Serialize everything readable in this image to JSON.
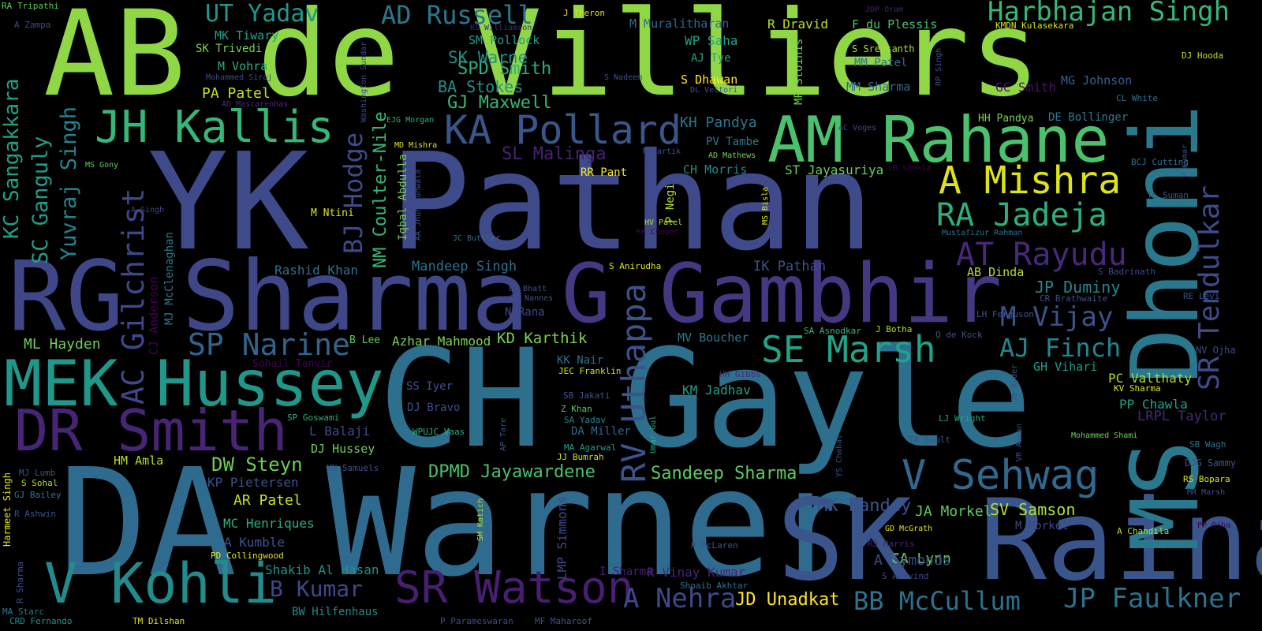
{
  "words": [
    {
      "text": "AB de Villiers",
      "color": "#8fd744"
    },
    {
      "text": "YK Pathan",
      "color": "#3e4a89"
    },
    {
      "text": "CH Gayle",
      "color": "#2d708e"
    },
    {
      "text": "DA Warner",
      "color": "#2f6b8e"
    },
    {
      "text": "RG Sharma",
      "color": "#3f4788"
    },
    {
      "text": "SK Raina",
      "color": "#39558c"
    },
    {
      "text": "MS Dhoni",
      "color": "#2a788e"
    },
    {
      "text": "G Gambhir",
      "color": "#453781"
    },
    {
      "text": "AM Rahane",
      "color": "#4ac16d"
    },
    {
      "text": "MEK Hussey",
      "color": "#1f988b"
    },
    {
      "text": "V Kohli",
      "color": "#238a8d"
    },
    {
      "text": "DR Smith",
      "color": "#482475"
    },
    {
      "text": "JH Kallis",
      "color": "#35b779"
    },
    {
      "text": "KA Pollard",
      "color": "#39568c"
    },
    {
      "text": "SR Watson",
      "color": "#481f70"
    },
    {
      "text": "Harbhajan Singh",
      "color": "#35b779"
    },
    {
      "text": "V Sehwag",
      "color": "#31688e"
    },
    {
      "text": "A Mishra",
      "color": "#dde318"
    },
    {
      "text": "RA Jadeja",
      "color": "#2ab07f"
    },
    {
      "text": "SE Marsh",
      "color": "#20a386"
    },
    {
      "text": "AT Rayudu",
      "color": "#482878"
    },
    {
      "text": "SP Narine",
      "color": "#33638d"
    },
    {
      "text": "RV Uthappa",
      "color": "#3b528b"
    },
    {
      "text": "SR Tendulkar",
      "color": "#3e4a89"
    },
    {
      "text": "AC Gilchrist",
      "color": "#3f4788"
    },
    {
      "text": "JP Faulkner",
      "color": "#2c728e"
    },
    {
      "text": "AJ Finch",
      "color": "#25858e"
    },
    {
      "text": "BB McCullum",
      "color": "#2c728e"
    },
    {
      "text": "M Vijay",
      "color": "#3b528b"
    },
    {
      "text": "A Nehra",
      "color": "#3e4989"
    },
    {
      "text": "KC Sangakkara",
      "color": "#1fa187"
    },
    {
      "text": "SC Ganguly",
      "color": "#1f9e89"
    },
    {
      "text": "Yuvraj Singh",
      "color": "#25838e"
    },
    {
      "text": "UT Yadav",
      "color": "#1f988b"
    },
    {
      "text": "AD Russell",
      "color": "#2a788e"
    },
    {
      "text": "BJ Hodge",
      "color": "#3e4a89"
    },
    {
      "text": "NM Coulter-Nile",
      "color": "#35b779"
    },
    {
      "text": "B Kumar",
      "color": "#3f4788"
    },
    {
      "text": "DW Steyn",
      "color": "#6ece58"
    },
    {
      "text": "DPMD Jayawardene",
      "color": "#4ac16d"
    },
    {
      "text": "Sandeep Sharma",
      "color": "#5ec962"
    },
    {
      "text": "SL Malinga",
      "color": "#482173"
    },
    {
      "text": "SPD Smith",
      "color": "#2ab07f"
    },
    {
      "text": "GJ Maxwell",
      "color": "#35b779"
    },
    {
      "text": "SK Warne",
      "color": "#21918c"
    },
    {
      "text": "BA Stokes",
      "color": "#21918c"
    },
    {
      "text": "MK Pandey",
      "color": "#3a548c"
    },
    {
      "text": "SV Samson",
      "color": "#b5de2b"
    },
    {
      "text": "JA Morkel",
      "color": "#5ec962"
    },
    {
      "text": "JD Unadkat",
      "color": "#fde725"
    },
    {
      "text": "CA Lynn",
      "color": "#6ece58"
    },
    {
      "text": "A Symonds",
      "color": "#3e4a89"
    },
    {
      "text": "JP Duminy",
      "color": "#25858e"
    },
    {
      "text": "KD Karthik",
      "color": "#7ad151"
    },
    {
      "text": "AR Patel",
      "color": "#c8e020"
    },
    {
      "text": "PA Patel",
      "color": "#c8e020"
    },
    {
      "text": "ML Hayden",
      "color": "#6ece58"
    },
    {
      "text": "Azhar Mahmood",
      "color": "#7ad151"
    },
    {
      "text": "Mandeep Singh",
      "color": "#2d708e"
    },
    {
      "text": "Rashid Khan",
      "color": "#2d708e"
    },
    {
      "text": "IK Pathan",
      "color": "#3b528b"
    },
    {
      "text": "KH Pandya",
      "color": "#2a788e"
    },
    {
      "text": "CH Morris",
      "color": "#23898e"
    },
    {
      "text": "ST Jayasuriya",
      "color": "#6ece58"
    },
    {
      "text": "R Vinay Kumar",
      "color": "#482475"
    },
    {
      "text": "Shakib Al Hasan",
      "color": "#21918c"
    },
    {
      "text": "KP Pietersen",
      "color": "#3b528b"
    },
    {
      "text": "MC Henriques",
      "color": "#2ab07f"
    },
    {
      "text": "A Kumble",
      "color": "#39568c"
    },
    {
      "text": "L Balaji",
      "color": "#3e4a89"
    },
    {
      "text": "DJ Hussey",
      "color": "#6ece58"
    },
    {
      "text": "HM Amla",
      "color": "#b5de2b"
    },
    {
      "text": "KM Jadhav",
      "color": "#1fa187"
    },
    {
      "text": "MV Boucher",
      "color": "#2a788e"
    },
    {
      "text": "PC Valthaty",
      "color": "#aadc32"
    },
    {
      "text": "PP Chawla",
      "color": "#1fa187"
    },
    {
      "text": "LRPL Taylor",
      "color": "#482878"
    },
    {
      "text": "GH Vihari",
      "color": "#1f9e89"
    },
    {
      "text": "LMP Simmons",
      "color": "#3e4989"
    },
    {
      "text": "AB Dinda",
      "color": "#b8de29"
    },
    {
      "text": "RR Pant",
      "color": "#fde725"
    },
    {
      "text": "PV Tambe",
      "color": "#2a788e"
    },
    {
      "text": "M Muralitharan",
      "color": "#31688e"
    },
    {
      "text": "R Dravid",
      "color": "#bddf26"
    },
    {
      "text": "F du Plessis",
      "color": "#4ac16d"
    },
    {
      "text": "S Sreesanth",
      "color": "#aadc32"
    },
    {
      "text": "WP Saha",
      "color": "#20a386"
    },
    {
      "text": "AJ Tye",
      "color": "#1fa187"
    },
    {
      "text": "MM Patel",
      "color": "#2c728e"
    },
    {
      "text": "MM Sharma",
      "color": "#31688e"
    },
    {
      "text": "S Dhawan",
      "color": "#fde725"
    },
    {
      "text": "MG Johnson",
      "color": "#35608d"
    },
    {
      "text": "GC Smith",
      "color": "#471365"
    },
    {
      "text": "HH Pandya",
      "color": "#7ad151"
    },
    {
      "text": "DE Bollinger",
      "color": "#2a788e"
    },
    {
      "text": "SM Pollock",
      "color": "#1f9e89"
    },
    {
      "text": "MK Tiwary",
      "color": "#1fa187"
    },
    {
      "text": "SK Trivedi",
      "color": "#7ad151"
    },
    {
      "text": "M Vohra",
      "color": "#2ab07f"
    },
    {
      "text": "M Ntini",
      "color": "#dde318"
    },
    {
      "text": "B Lee",
      "color": "#5ec962"
    },
    {
      "text": "N Rana",
      "color": "#3e4a89"
    },
    {
      "text": "KK Nair",
      "color": "#2d708e"
    },
    {
      "text": "DA Miller",
      "color": "#31688e"
    },
    {
      "text": "DJ Bravo",
      "color": "#3e4a89"
    },
    {
      "text": "SS Iyer",
      "color": "#3b528b"
    },
    {
      "text": "Iqbal Abdulla",
      "color": "#7ad151"
    },
    {
      "text": "P Negi",
      "color": "#b5de2b"
    },
    {
      "text": "MP Stoinis",
      "color": "#7ad151"
    },
    {
      "text": "Sohail Tanvir",
      "color": "#440154"
    },
    {
      "text": "CJ Anderson",
      "color": "#440154"
    },
    {
      "text": "MJ McClenaghan",
      "color": "#2a788e"
    },
    {
      "text": "Harmeet Singh",
      "color": "#dde318"
    },
    {
      "text": "R Ashwin",
      "color": "#3b528b"
    },
    {
      "text": "PD Collingwood",
      "color": "#dde318"
    },
    {
      "text": "BW Hilfenhaus",
      "color": "#23898e"
    },
    {
      "text": "I Sharma",
      "color": "#481f70"
    },
    {
      "text": "S Aravind",
      "color": "#3e4a89"
    },
    {
      "text": "R McLaren",
      "color": "#3b528b"
    },
    {
      "text": "M Morkel",
      "color": "#3e4989"
    },
    {
      "text": "RS Bopara",
      "color": "#dde318"
    },
    {
      "text": "A Chandila",
      "color": "#b5de2b"
    },
    {
      "text": "DJG Sammy",
      "color": "#3b528b"
    },
    {
      "text": "SB Wagh",
      "color": "#2d708e"
    },
    {
      "text": "NV Ojha",
      "color": "#3e4a89"
    },
    {
      "text": "RE Levi",
      "color": "#3b528b"
    },
    {
      "text": "S Badrinath",
      "color": "#3e4989"
    },
    {
      "text": "CR Brathwaite",
      "color": "#3b528b"
    },
    {
      "text": "TL Suman",
      "color": "#3b528b"
    },
    {
      "text": "BCJ Cutting",
      "color": "#2d708e"
    },
    {
      "text": "CL White",
      "color": "#2c728e"
    },
    {
      "text": "DJ Hooda",
      "color": "#bddf26"
    },
    {
      "text": "Q de Kock",
      "color": "#3b528b"
    },
    {
      "text": "LH Ferguson",
      "color": "#3b528b"
    },
    {
      "text": "Mohammed Shami",
      "color": "#6ece58"
    },
    {
      "text": "KV Sharma",
      "color": "#dde318"
    },
    {
      "text": "LJ Wright",
      "color": "#20a386"
    },
    {
      "text": "TA Boult",
      "color": "#3b528b"
    },
    {
      "text": "SA Asnodkar",
      "color": "#35b779"
    },
    {
      "text": "J Botha",
      "color": "#aadc32"
    },
    {
      "text": "GD McGrath",
      "color": "#dde318"
    },
    {
      "text": "RJ Harris",
      "color": "#482878"
    },
    {
      "text": "HH Gibbs",
      "color": "#482878"
    },
    {
      "text": "JEC Franklin",
      "color": "#c8e020"
    },
    {
      "text": "SB Jakati",
      "color": "#3b528b"
    },
    {
      "text": "Z Khan",
      "color": "#5ec962"
    },
    {
      "text": "SA Yadav",
      "color": "#23898e"
    },
    {
      "text": "MA Agarwal",
      "color": "#1f9e89"
    },
    {
      "text": "JJ Bumrah",
      "color": "#c8e020"
    },
    {
      "text": "WPUJC Vaas",
      "color": "#2ab07f"
    },
    {
      "text": "SP Goswami",
      "color": "#2ab07f"
    },
    {
      "text": "MJ Lumb",
      "color": "#3b528b"
    },
    {
      "text": "S Sohal",
      "color": "#aadc32"
    },
    {
      "text": "GJ Bailey",
      "color": "#2a788e"
    },
    {
      "text": "MN Samuels",
      "color": "#3b528b"
    },
    {
      "text": "MA Starc",
      "color": "#2a788e"
    },
    {
      "text": "CRD Fernando",
      "color": "#21918c"
    },
    {
      "text": "TM Dilshan",
      "color": "#dde318"
    },
    {
      "text": "P Parameswaran",
      "color": "#3e4a89"
    },
    {
      "text": "MF Maharoof",
      "color": "#3b528b"
    },
    {
      "text": "Shoaib Akhtar",
      "color": "#2d708e"
    },
    {
      "text": "R Sharma",
      "color": "#3b528b"
    },
    {
      "text": "A Zampa",
      "color": "#3e4a89"
    },
    {
      "text": "RA Tripathi",
      "color": "#5ec962"
    },
    {
      "text": "J Theron",
      "color": "#dde318"
    },
    {
      "text": "KS Williamson",
      "color": "#482878"
    },
    {
      "text": "JDP Oram",
      "color": "#481f70"
    },
    {
      "text": "KMDN Kulasekara",
      "color": "#dde318"
    },
    {
      "text": "S Nadeem",
      "color": "#3b528b"
    },
    {
      "text": "DL Vettori",
      "color": "#3b528b"
    },
    {
      "text": "Mohammed Siraj",
      "color": "#3e4a89"
    },
    {
      "text": "AD Mascarenhas",
      "color": "#482878"
    },
    {
      "text": "Washington Sundar",
      "color": "#3e4a89"
    },
    {
      "text": "EJG Morgan",
      "color": "#2ab07f"
    },
    {
      "text": "MD Mishra",
      "color": "#dde318"
    },
    {
      "text": "MS Gony",
      "color": "#5ec962"
    },
    {
      "text": "A Singh",
      "color": "#3e4a89"
    },
    {
      "text": "AA Jhunjhunwala",
      "color": "#3b528b"
    },
    {
      "text": "JC Buttler",
      "color": "#2d708e"
    },
    {
      "text": "M Kartik",
      "color": "#3b528b"
    },
    {
      "text": "HV Patel",
      "color": "#b5de2b"
    },
    {
      "text": "KK Cooper",
      "color": "#440154"
    },
    {
      "text": "MS Bisla",
      "color": "#dde318"
    },
    {
      "text": "LR Shukla",
      "color": "#440154"
    },
    {
      "text": "AC Voges",
      "color": "#3e4a89"
    },
    {
      "text": "AD Mathews",
      "color": "#7ad151"
    },
    {
      "text": "RP Singh",
      "color": "#3b528b"
    },
    {
      "text": "Mustafizur Rahman",
      "color": "#2d708e"
    },
    {
      "text": "P Kumar",
      "color": "#3e4a89"
    },
    {
      "text": "S Anirudha",
      "color": "#dde318"
    },
    {
      "text": "BA Bhatt",
      "color": "#3b528b"
    },
    {
      "text": "DP Nannes",
      "color": "#3b528b"
    },
    {
      "text": "AP Tare",
      "color": "#3b528b"
    },
    {
      "text": "Umar Gul",
      "color": "#2ab07f"
    },
    {
      "text": "YS Chahal",
      "color": "#3b528b"
    },
    {
      "text": "JD Ryder",
      "color": "#3b528b"
    },
    {
      "text": "VR Aaron",
      "color": "#3e4a89"
    },
    {
      "text": "MR Marsh",
      "color": "#3e4a89"
    },
    {
      "text": "PP Ojha",
      "color": "#440154"
    },
    {
      "text": "SM Katich",
      "color": "#b5de2b"
    }
  ]
}
